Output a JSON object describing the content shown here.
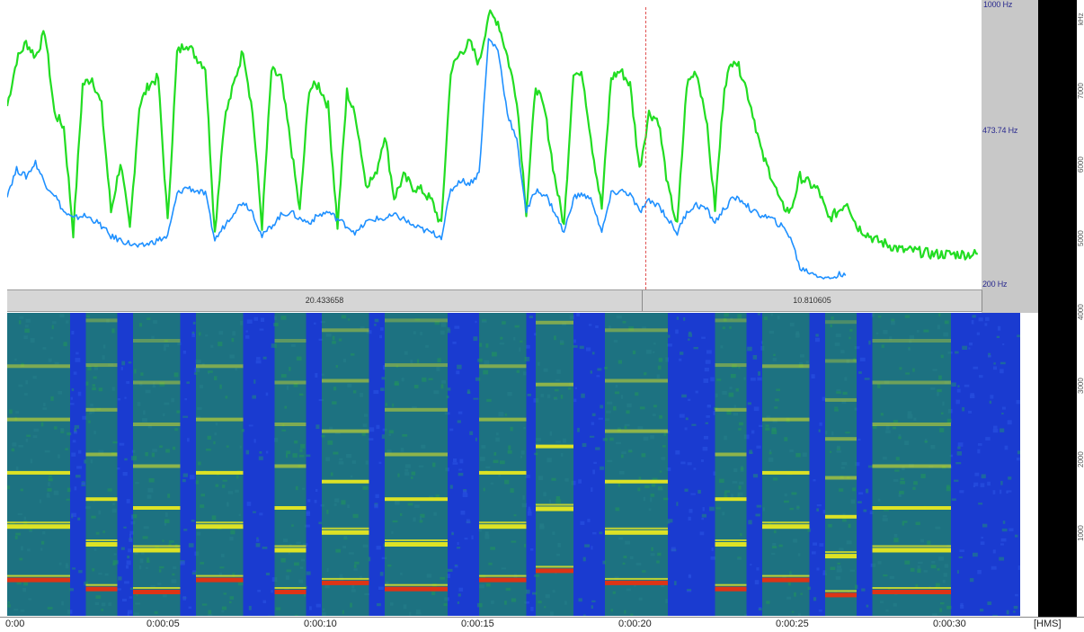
{
  "chart_data": [
    {
      "type": "line",
      "title": "",
      "xlabel": "",
      "ylabel": "",
      "xlim": [
        0,
        31
      ],
      "ylim": [
        200,
        1000
      ],
      "y_tick_labels": [
        "473.74 Hz",
        "200 Hz"
      ],
      "top_tick_label_partial": "1000 Hz",
      "series": [
        {
          "name": "",
          "color": "#22dd22",
          "x": [
            0,
            0.3,
            0.6,
            0.9,
            1.2,
            1.5,
            1.8,
            2.1,
            2.4,
            2.7,
            3.0,
            3.3,
            3.6,
            3.9,
            4.2,
            4.5,
            4.8,
            5.1,
            5.4,
            5.7,
            6.0,
            6.3,
            6.6,
            6.9,
            7.2,
            7.5,
            7.8,
            8.1,
            8.4,
            8.7,
            9.0,
            9.3,
            9.6,
            9.9,
            10.2,
            10.5,
            10.8,
            11.1,
            11.4,
            11.7,
            12.0,
            12.3,
            12.6,
            12.9,
            13.2,
            13.5,
            13.8,
            14.1,
            14.4,
            14.7,
            15.0,
            15.3,
            15.6,
            15.9,
            16.2,
            16.5,
            16.8,
            17.1,
            17.4,
            17.7,
            18.0,
            18.3,
            18.6,
            18.9,
            19.2,
            19.5,
            19.8,
            20.1,
            20.4,
            20.7,
            21.0,
            21.3,
            21.6,
            21.9,
            22.2,
            22.5,
            22.8,
            23.1,
            23.4,
            23.7,
            24.0,
            24.3,
            24.6,
            24.9,
            25.2,
            25.5,
            25.8,
            26.1,
            26.4,
            26.7,
            27.0,
            27.3,
            27.6,
            27.9,
            28.2,
            28.5,
            28.8,
            29.1,
            29.4,
            29.7,
            30.0,
            30.3,
            30.6,
            30.9
          ],
          "y": [
            720,
            850,
            900,
            860,
            930,
            700,
            660,
            360,
            780,
            800,
            720,
            420,
            560,
            370,
            720,
            780,
            800,
            390,
            870,
            900,
            860,
            830,
            360,
            680,
            780,
            880,
            700,
            380,
            820,
            800,
            620,
            420,
            770,
            780,
            720,
            380,
            760,
            680,
            500,
            520,
            640,
            460,
            520,
            490,
            480,
            450,
            380,
            820,
            870,
            900,
            840,
            980,
            960,
            860,
            740,
            420,
            780,
            700,
            520,
            380,
            820,
            800,
            600,
            430,
            800,
            820,
            780,
            540,
            700,
            680,
            490,
            380,
            780,
            820,
            700,
            430,
            780,
            860,
            800,
            700,
            580,
            520,
            440,
            420,
            520,
            500,
            480,
            400,
            420,
            450,
            380,
            360,
            340,
            330,
            320,
            310,
            310,
            305,
            300,
            300,
            300,
            300,
            300,
            300
          ]
        },
        {
          "name": "",
          "color": "#1e90ff",
          "x": [
            0,
            0.3,
            0.6,
            0.9,
            1.2,
            1.5,
            1.8,
            2.1,
            2.4,
            2.7,
            3.0,
            3.3,
            3.6,
            3.9,
            4.2,
            4.5,
            4.8,
            5.1,
            5.4,
            5.7,
            6.0,
            6.3,
            6.6,
            6.9,
            7.2,
            7.5,
            7.8,
            8.1,
            8.4,
            8.7,
            9.0,
            9.3,
            9.6,
            9.9,
            10.2,
            10.5,
            10.8,
            11.1,
            11.4,
            11.7,
            12.0,
            12.3,
            12.6,
            12.9,
            13.2,
            13.5,
            13.8,
            14.1,
            14.4,
            14.7,
            15.0,
            15.3,
            15.6,
            15.9,
            16.2,
            16.5,
            16.8,
            17.1,
            17.4,
            17.7,
            18.0,
            18.3,
            18.6,
            18.9,
            19.2,
            19.5,
            19.8,
            20.1,
            20.4,
            20.7,
            21.0,
            21.3,
            21.6,
            21.9,
            22.2,
            22.5,
            22.8,
            23.1,
            23.4,
            23.7,
            24.0,
            24.3,
            24.6,
            24.9,
            25.2,
            25.5,
            25.8,
            26.1,
            26.4,
            26.7
          ],
          "y": [
            470,
            540,
            520,
            560,
            500,
            470,
            420,
            400,
            410,
            400,
            380,
            350,
            340,
            330,
            320,
            330,
            340,
            350,
            470,
            490,
            480,
            470,
            340,
            380,
            420,
            450,
            420,
            350,
            380,
            410,
            420,
            400,
            390,
            410,
            420,
            400,
            380,
            360,
            390,
            400,
            400,
            410,
            400,
            380,
            370,
            360,
            350,
            480,
            510,
            500,
            530,
            910,
            880,
            700,
            620,
            420,
            480,
            470,
            420,
            360,
            460,
            470,
            450,
            360,
            470,
            480,
            470,
            420,
            450,
            440,
            400,
            360,
            420,
            440,
            430,
            390,
            430,
            460,
            450,
            420,
            410,
            400,
            380,
            350,
            260,
            250,
            240,
            230,
            240,
            250
          ]
        }
      ]
    },
    {
      "type": "heatmap",
      "title": "",
      "xlabel": "[HMS]",
      "ylabel": "",
      "x_tick_labels": [
        "0:00",
        "0:00:05",
        "0:00:10",
        "0:00:15",
        "0:00:20",
        "0:00:25",
        "0:00:30"
      ],
      "x_ticks": [
        0,
        5,
        10,
        15,
        20,
        25,
        30
      ],
      "xlim": [
        0,
        31
      ],
      "colormap": [
        "#1a3bd0",
        "#20a040",
        "#e8e820",
        "#e83010"
      ],
      "harmonic_bands": [
        {
          "x": [
            0,
            2
          ],
          "f0_row": 0.88
        },
        {
          "x": [
            2.5,
            3.5
          ],
          "f0_row": 0.91
        },
        {
          "x": [
            4,
            5.5
          ],
          "f0_row": 0.92
        },
        {
          "x": [
            6,
            7.5
          ],
          "f0_row": 0.88
        },
        {
          "x": [
            8.5,
            9.5
          ],
          "f0_row": 0.92
        },
        {
          "x": [
            10,
            11.5
          ],
          "f0_row": 0.89
        },
        {
          "x": [
            12,
            14
          ],
          "f0_row": 0.91
        },
        {
          "x": [
            15,
            16.5
          ],
          "f0_row": 0.88
        },
        {
          "x": [
            16.8,
            18
          ],
          "f0_row": 0.85
        },
        {
          "x": [
            19,
            21
          ],
          "f0_row": 0.89
        },
        {
          "x": [
            22.5,
            23.5
          ],
          "f0_row": 0.91
        },
        {
          "x": [
            24,
            25.5
          ],
          "f0_row": 0.88
        },
        {
          "x": [
            26,
            27
          ],
          "f0_row": 0.93
        },
        {
          "x": [
            27.5,
            30
          ],
          "f0_row": 0.92
        }
      ]
    }
  ],
  "segments": [
    {
      "label": "20.433658",
      "start": 0,
      "end": 20.2
    },
    {
      "label": "10.810605",
      "start": 20.2,
      "end": 31
    }
  ],
  "right_scale": {
    "mid_label": "473.74 Hz",
    "bottom_label": "200 Hz",
    "top_label": "1000 Hz"
  },
  "spec_scale_ticks": [
    "kHz",
    "7000",
    "6000",
    "5000",
    "4000",
    "3000",
    "2000",
    "1000"
  ],
  "time_unit": "[HMS]",
  "colors": {
    "pitch_green": "#22dd22",
    "pitch_blue": "#1e90ff",
    "cursor": "#e05050"
  }
}
